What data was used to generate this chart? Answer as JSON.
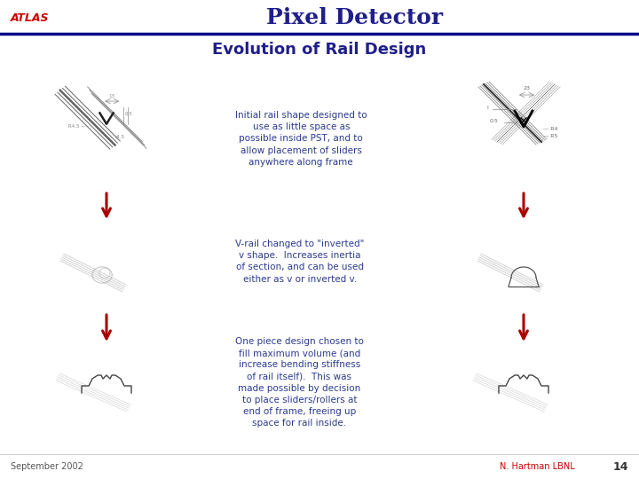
{
  "title": "Pixel Detector",
  "atlas_label": "ATLAS",
  "subtitle": "Evolution of Rail Design",
  "footer_left": "September 2002",
  "footer_right": "N. Hartman LBNL",
  "page_number": "14",
  "text_block_1": "Initial rail shape designed to\nuse as little space as\npossible inside PST, and to\nallow placement of sliders\nanywhere along frame",
  "text_block_2": "V-rail changed to \"inverted\"\nv shape.  Increases inertia\nof section, and can be used\neither as v or inverted v.",
  "text_block_3": "One piece design chosen to\nfill maximum volume (and\nincrease bending stiffness\nof rail itself).  This was\nmade possible by decision\nto place sliders/rollers at\nend of frame, freeing up\nspace for rail inside.",
  "bg_color": "#ffffff",
  "title_color": "#1F1F8B",
  "atlas_color": "#cc0000",
  "subtitle_color": "#1F1F8B",
  "text_color": "#2B3A8F",
  "footer_color": "#555555",
  "footer_right_color": "#cc0000",
  "line_color": "#00008B",
  "arrow_color": "#aa0000",
  "sketch_color": "#888888",
  "sketch_dark": "#222222"
}
